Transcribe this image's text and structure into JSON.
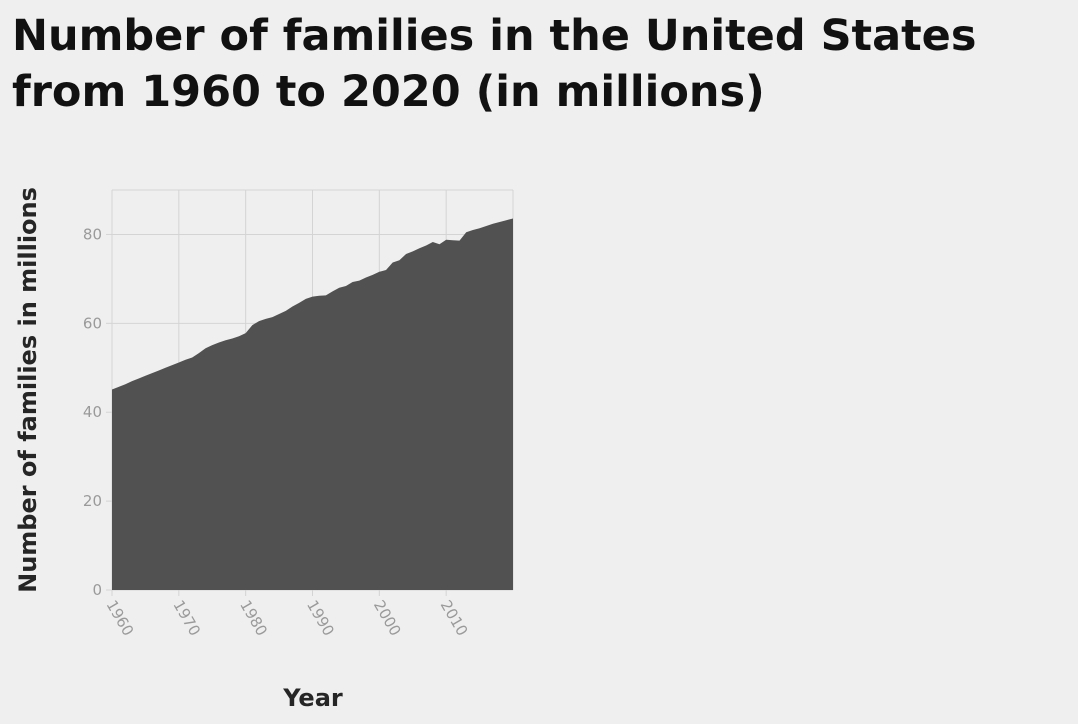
{
  "chart_data": {
    "type": "area",
    "title": "Number of families in the United States from 1960 to 2020 (in millions)",
    "xlabel": "Year",
    "ylabel": "Number of families in millions",
    "xlim": [
      1960,
      2020
    ],
    "ylim": [
      0,
      90
    ],
    "x_ticks": [
      "1960",
      "1970",
      "1980",
      "1990",
      "2000",
      "2010"
    ],
    "y_ticks": [
      "0",
      "20",
      "40",
      "60",
      "80"
    ],
    "grid": true,
    "legend": "none",
    "colors": {
      "area": "#515151",
      "grid": "#d4d4d4",
      "background": "#efefef",
      "text": "#111111",
      "tick": "#9a9a9a"
    },
    "x": [
      1960,
      1961,
      1962,
      1963,
      1964,
      1965,
      1966,
      1967,
      1968,
      1969,
      1970,
      1971,
      1972,
      1973,
      1974,
      1975,
      1976,
      1977,
      1978,
      1979,
      1980,
      1981,
      1982,
      1983,
      1984,
      1985,
      1986,
      1987,
      1988,
      1989,
      1990,
      1991,
      1992,
      1993,
      1994,
      1995,
      1996,
      1997,
      1998,
      1999,
      2000,
      2001,
      2002,
      2003,
      2004,
      2005,
      2006,
      2007,
      2008,
      2009,
      2010,
      2011,
      2012,
      2013,
      2014,
      2015,
      2016,
      2017,
      2018,
      2019,
      2020
    ],
    "values": [
      45.1,
      45.7,
      46.3,
      47.0,
      47.6,
      48.2,
      48.8,
      49.4,
      50.0,
      50.6,
      51.2,
      51.8,
      52.3,
      53.3,
      54.4,
      55.1,
      55.7,
      56.2,
      56.6,
      57.1,
      57.8,
      59.6,
      60.5,
      61.0,
      61.4,
      62.1,
      62.8,
      63.8,
      64.6,
      65.5,
      66.0,
      66.2,
      66.3,
      67.2,
      68.0,
      68.4,
      69.3,
      69.6,
      70.3,
      70.9,
      71.6,
      72.0,
      73.7,
      74.2,
      75.6,
      76.2,
      76.9,
      77.5,
      78.3,
      77.8,
      78.8,
      78.7,
      78.6,
      80.5,
      81.0,
      81.4,
      81.9,
      82.4,
      82.8,
      83.2,
      83.6
    ]
  }
}
